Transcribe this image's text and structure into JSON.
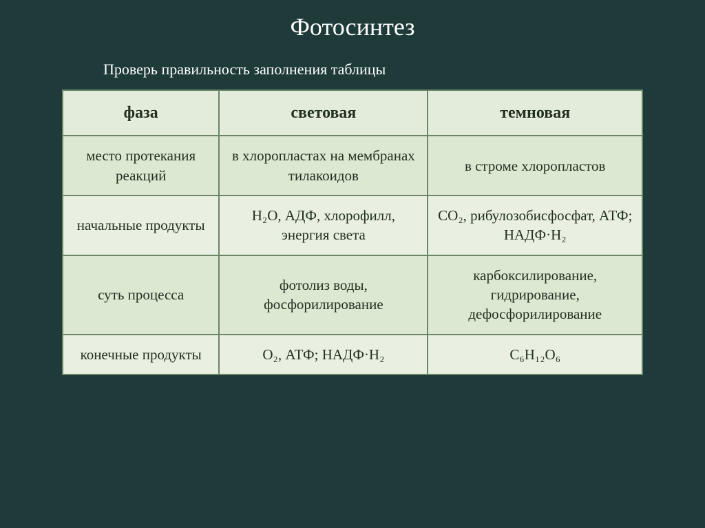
{
  "title": "Фотосинтез",
  "subtitle": "Проверь правильность заполнения таблицы",
  "columns": [
    "фаза",
    "световая",
    "темновая"
  ],
  "rows": [
    {
      "label": "место протекания реакций",
      "light": "в хлоропластах на мембранах тилакоидов",
      "dark": "в строме хлоропластов"
    },
    {
      "label": "начальные продукты",
      "light": "H₂O, АДФ, хлорофилл, энергия света",
      "dark": "CO₂, рибулозобисфосфат, АТФ; НАДФ·H₂"
    },
    {
      "label": "суть процесса",
      "light": "фотолиз воды, фосфорилирование",
      "dark": "карбоксилирование, гидрирование, дефосфорилирование"
    },
    {
      "label": "конечные продукты",
      "light": "O₂, АТФ; НАДФ·H₂",
      "dark": "C₆H₁₂O₆"
    }
  ],
  "colors": {
    "background": "#1e3b3a",
    "text_on_dark": "#ffffff",
    "cell_bg_a": "#e9f0e2",
    "cell_bg_b": "#dde8d3",
    "cell_border": "#6b8566",
    "cell_text": "#22301f"
  },
  "typography": {
    "title_fontsize": 36,
    "subtitle_fontsize": 22,
    "header_fontsize": 24,
    "cell_fontsize": 21,
    "font_family": "Georgia, serif"
  }
}
